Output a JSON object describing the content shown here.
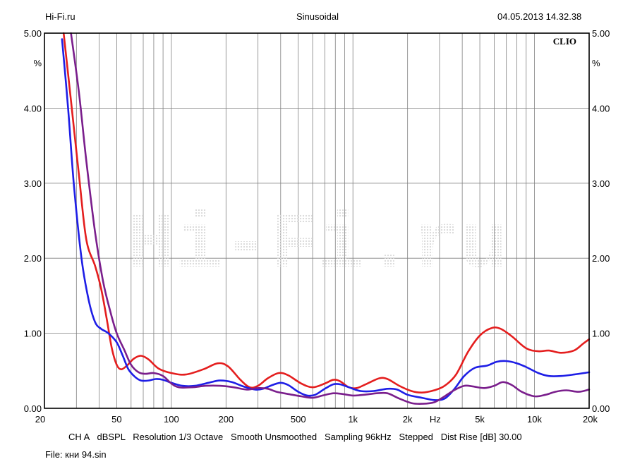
{
  "header": {
    "left": "Hi-Fi.ru",
    "center": "Sinusoidal",
    "right": "04.05.2013 14.32.38"
  },
  "brand": "CLIO",
  "watermark": "Hi-Fi.ru",
  "footer": {
    "settings_line": "CH A   dBSPL   Resolution 1/3 Octave   Smooth Unsmoothed   Sampling 96kHz   Stepped   Dist Rise [dB] 30.00",
    "file_line": "File: кни 94.sin"
  },
  "colors": {
    "red": "#e41e1e",
    "blue": "#1e1ee6",
    "purple": "#7a1e8c",
    "grid": "#808080",
    "frame": "#000000"
  },
  "chart_data": {
    "type": "line",
    "title": "Sinusoidal",
    "xlabel": "Hz",
    "ylabel": "%",
    "x_scale": "log",
    "xlim": [
      20,
      20000
    ],
    "ylim": [
      0,
      5
    ],
    "grid": true,
    "x_tick_labels": [
      {
        "value": 20,
        "label": "20"
      },
      {
        "value": 50,
        "label": "50"
      },
      {
        "value": 100,
        "label": "100"
      },
      {
        "value": 200,
        "label": "200"
      },
      {
        "value": 500,
        "label": "500"
      },
      {
        "value": 1000,
        "label": "1k"
      },
      {
        "value": 2000,
        "label": "2k"
      },
      {
        "value": 5000,
        "label": "5k"
      },
      {
        "value": 10000,
        "label": "10k"
      },
      {
        "value": 20000,
        "label": "20k"
      }
    ],
    "x_axis_unit_label": "Hz",
    "y_tick_labels": [
      "0.00",
      "1.00",
      "2.00",
      "3.00",
      "4.00",
      "5.00"
    ],
    "y_unit_label": "%",
    "series": [
      {
        "color": "#e41e1e",
        "points": [
          [
            25.5,
            5.0
          ],
          [
            28,
            4.1
          ],
          [
            31,
            3.1
          ],
          [
            34,
            2.25
          ],
          [
            38,
            1.9
          ],
          [
            41,
            1.6
          ],
          [
            44,
            1.2
          ],
          [
            47,
            0.8
          ],
          [
            50,
            0.58
          ],
          [
            53,
            0.52
          ],
          [
            57,
            0.57
          ],
          [
            62,
            0.66
          ],
          [
            68,
            0.7
          ],
          [
            75,
            0.65
          ],
          [
            85,
            0.53
          ],
          [
            100,
            0.47
          ],
          [
            120,
            0.45
          ],
          [
            150,
            0.52
          ],
          [
            180,
            0.6
          ],
          [
            205,
            0.56
          ],
          [
            240,
            0.38
          ],
          [
            270,
            0.28
          ],
          [
            300,
            0.3
          ],
          [
            340,
            0.4
          ],
          [
            390,
            0.47
          ],
          [
            440,
            0.44
          ],
          [
            520,
            0.33
          ],
          [
            600,
            0.28
          ],
          [
            700,
            0.33
          ],
          [
            780,
            0.38
          ],
          [
            850,
            0.36
          ],
          [
            950,
            0.28
          ],
          [
            1050,
            0.27
          ],
          [
            1200,
            0.33
          ],
          [
            1400,
            0.4
          ],
          [
            1550,
            0.39
          ],
          [
            1800,
            0.3
          ],
          [
            2100,
            0.23
          ],
          [
            2400,
            0.21
          ],
          [
            2800,
            0.24
          ],
          [
            3200,
            0.3
          ],
          [
            3700,
            0.45
          ],
          [
            4300,
            0.75
          ],
          [
            5000,
            0.97
          ],
          [
            5800,
            1.07
          ],
          [
            6500,
            1.06
          ],
          [
            7500,
            0.96
          ],
          [
            9000,
            0.8
          ],
          [
            10500,
            0.76
          ],
          [
            12000,
            0.77
          ],
          [
            14000,
            0.74
          ],
          [
            16500,
            0.77
          ],
          [
            18500,
            0.86
          ],
          [
            20000,
            0.92
          ]
        ]
      },
      {
        "color": "#1e1ee6",
        "points": [
          [
            25,
            4.92
          ],
          [
            27,
            4.0
          ],
          [
            29,
            3.0
          ],
          [
            32,
            2.0
          ],
          [
            35,
            1.45
          ],
          [
            38,
            1.15
          ],
          [
            41,
            1.06
          ],
          [
            45,
            1.0
          ],
          [
            50,
            0.88
          ],
          [
            54,
            0.7
          ],
          [
            58,
            0.52
          ],
          [
            63,
            0.42
          ],
          [
            68,
            0.37
          ],
          [
            75,
            0.37
          ],
          [
            82,
            0.39
          ],
          [
            90,
            0.38
          ],
          [
            100,
            0.34
          ],
          [
            115,
            0.3
          ],
          [
            135,
            0.3
          ],
          [
            160,
            0.34
          ],
          [
            185,
            0.37
          ],
          [
            215,
            0.35
          ],
          [
            250,
            0.29
          ],
          [
            290,
            0.25
          ],
          [
            320,
            0.26
          ],
          [
            360,
            0.31
          ],
          [
            400,
            0.34
          ],
          [
            440,
            0.31
          ],
          [
            500,
            0.22
          ],
          [
            560,
            0.17
          ],
          [
            620,
            0.18
          ],
          [
            700,
            0.26
          ],
          [
            780,
            0.32
          ],
          [
            850,
            0.32
          ],
          [
            950,
            0.28
          ],
          [
            1100,
            0.23
          ],
          [
            1300,
            0.23
          ],
          [
            1550,
            0.26
          ],
          [
            1750,
            0.25
          ],
          [
            2000,
            0.18
          ],
          [
            2400,
            0.14
          ],
          [
            2800,
            0.11
          ],
          [
            3200,
            0.13
          ],
          [
            3600,
            0.25
          ],
          [
            4100,
            0.43
          ],
          [
            4700,
            0.54
          ],
          [
            5500,
            0.57
          ],
          [
            6200,
            0.62
          ],
          [
            7000,
            0.63
          ],
          [
            8000,
            0.6
          ],
          [
            9000,
            0.55
          ],
          [
            10500,
            0.47
          ],
          [
            12000,
            0.43
          ],
          [
            14000,
            0.43
          ],
          [
            16500,
            0.45
          ],
          [
            20000,
            0.48
          ]
        ]
      },
      {
        "color": "#7a1e8c",
        "points": [
          [
            28,
            5.0
          ],
          [
            31,
            4.2
          ],
          [
            34,
            3.3
          ],
          [
            38,
            2.35
          ],
          [
            42,
            1.7
          ],
          [
            46,
            1.3
          ],
          [
            50,
            1.0
          ],
          [
            55,
            0.78
          ],
          [
            60,
            0.58
          ],
          [
            66,
            0.48
          ],
          [
            72,
            0.46
          ],
          [
            80,
            0.47
          ],
          [
            90,
            0.43
          ],
          [
            100,
            0.33
          ],
          [
            110,
            0.28
          ],
          [
            130,
            0.28
          ],
          [
            155,
            0.3
          ],
          [
            185,
            0.3
          ],
          [
            220,
            0.28
          ],
          [
            260,
            0.25
          ],
          [
            300,
            0.27
          ],
          [
            340,
            0.26
          ],
          [
            380,
            0.22
          ],
          [
            440,
            0.19
          ],
          [
            520,
            0.16
          ],
          [
            600,
            0.14
          ],
          [
            680,
            0.17
          ],
          [
            780,
            0.2
          ],
          [
            880,
            0.19
          ],
          [
            1000,
            0.17
          ],
          [
            1150,
            0.18
          ],
          [
            1350,
            0.2
          ],
          [
            1550,
            0.2
          ],
          [
            1800,
            0.13
          ],
          [
            2100,
            0.07
          ],
          [
            2400,
            0.06
          ],
          [
            2800,
            0.08
          ],
          [
            3200,
            0.16
          ],
          [
            3600,
            0.24
          ],
          [
            4100,
            0.3
          ],
          [
            4600,
            0.29
          ],
          [
            5300,
            0.27
          ],
          [
            6000,
            0.3
          ],
          [
            6700,
            0.35
          ],
          [
            7500,
            0.31
          ],
          [
            8500,
            0.22
          ],
          [
            10000,
            0.16
          ],
          [
            11500,
            0.18
          ],
          [
            13000,
            0.22
          ],
          [
            15000,
            0.24
          ],
          [
            17500,
            0.22
          ],
          [
            20000,
            0.25
          ]
        ]
      }
    ]
  }
}
